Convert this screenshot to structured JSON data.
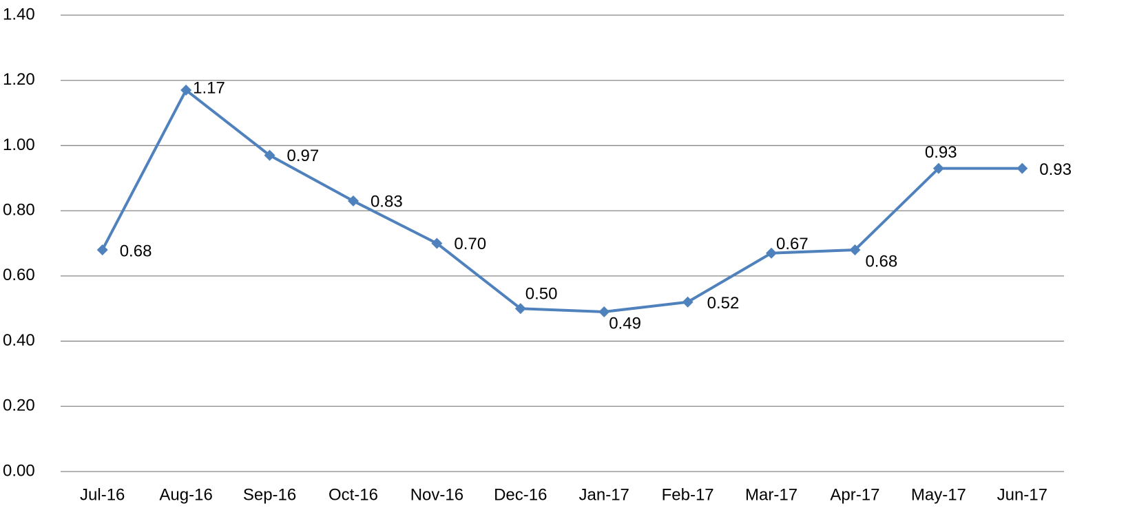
{
  "chart_data": {
    "type": "line",
    "categories": [
      "Jul-16",
      "Aug-16",
      "Sep-16",
      "Oct-16",
      "Nov-16",
      "Dec-16",
      "Jan-17",
      "Feb-17",
      "Mar-17",
      "Apr-17",
      "May-17",
      "Jun-17"
    ],
    "series": [
      {
        "color": "#4f81bd",
        "values": [
          0.68,
          1.17,
          0.97,
          0.83,
          0.7,
          0.5,
          0.49,
          0.52,
          0.67,
          0.68,
          0.93,
          0.93
        ],
        "value_labels": [
          "0.68",
          "1.17",
          "0.97",
          "0.83",
          "0.70",
          "0.50",
          "0.49",
          "0.52",
          "0.67",
          "0.68",
          "0.93",
          "0.93"
        ]
      }
    ],
    "ylim": [
      0,
      1.4
    ],
    "yticks": [
      {
        "value": 0,
        "label": "0.00"
      },
      {
        "value": 0.2,
        "label": "0.20"
      },
      {
        "value": 0.4,
        "label": "0.40"
      },
      {
        "value": 0.6,
        "label": "0.60"
      },
      {
        "value": 0.8,
        "label": "0.80"
      },
      {
        "value": 1.0,
        "label": "1.00"
      },
      {
        "value": 1.2,
        "label": "1.20"
      },
      {
        "value": 1.4,
        "label": "1.40"
      }
    ],
    "grid": true
  }
}
